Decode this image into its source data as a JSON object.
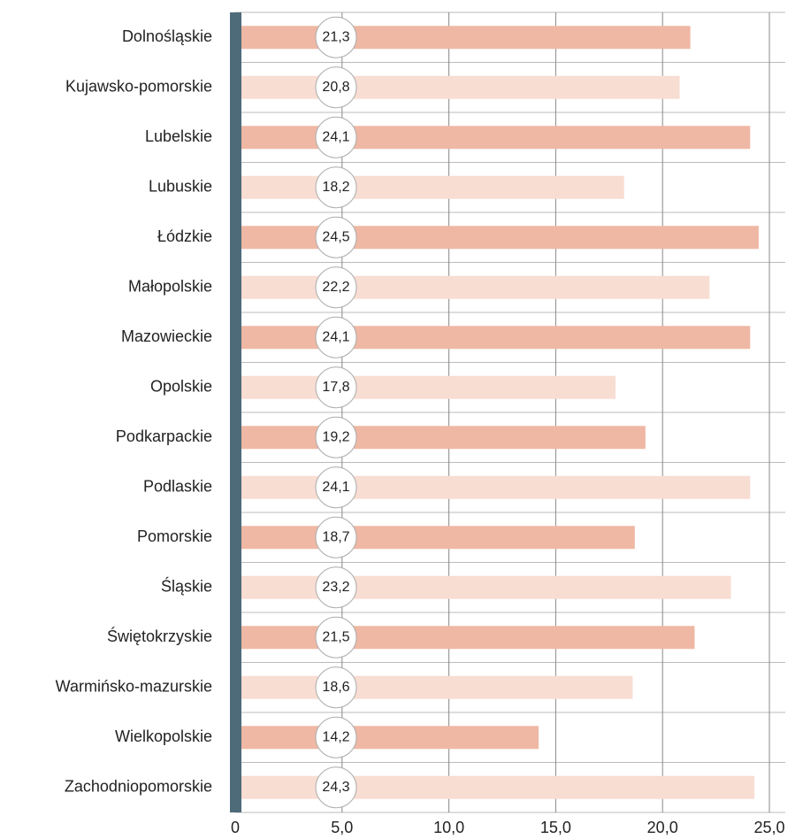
{
  "chart_data": {
    "type": "barh",
    "categories": [
      "Dolnośląskie",
      "Kujawsko-pomorskie",
      "Lubelskie",
      "Lubuskie",
      "Łódzkie",
      "Małopolskie",
      "Mazowieckie",
      "Opolskie",
      "Podkarpackie",
      "Podlaskie",
      "Pomorskie",
      "Śląskie",
      "Świętokrzyskie",
      "Warmińsko-mazurskie",
      "Wielkopolskie",
      "Zachodniopomorskie"
    ],
    "values": [
      21.3,
      20.8,
      24.1,
      18.2,
      24.5,
      22.2,
      24.1,
      17.8,
      19.2,
      24.1,
      18.7,
      23.2,
      21.5,
      18.6,
      14.2,
      24.3
    ],
    "value_labels": [
      "21,3",
      "20,8",
      "24,1",
      "18,2",
      "24,5",
      "22,2",
      "24,1",
      "17,8",
      "19,2",
      "24,1",
      "18,7",
      "23,2",
      "21,5",
      "18,6",
      "14,2",
      "24,3"
    ],
    "colors": [
      "#efb8a4",
      "#f8ddd3"
    ],
    "xlim": [
      0,
      25
    ],
    "xticks": [
      0,
      {
        "value": 5,
        "label": "5,0"
      },
      {
        "value": 10,
        "label": "10,0"
      },
      {
        "value": 15,
        "label": "15,0"
      },
      {
        "value": 20,
        "label": "20,0"
      },
      {
        "value": 25,
        "label": "25,0"
      }
    ],
    "grid": true
  }
}
